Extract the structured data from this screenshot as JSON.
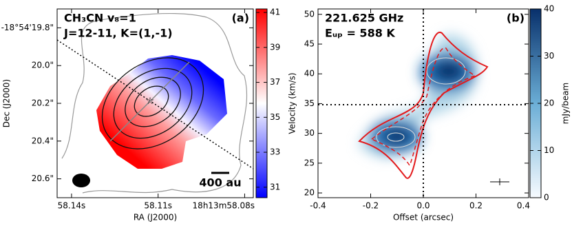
{
  "chart_data": [
    {
      "type": "image",
      "panel_label": "(a)",
      "title_lines": [
        "CH₃CN v₈=1",
        "J=12-11, K=(1,-1)"
      ],
      "scalebar_label": "400 au",
      "x_label": "RA (J2000)",
      "y_label": "Dec (J2000)",
      "xlim": [
        58.145,
        58.077
      ],
      "xticks": [
        {
          "value": 58.14,
          "label": "58.14s"
        },
        {
          "value": 58.11,
          "label": "58.11s"
        },
        {
          "value": 58.08,
          "label": "18h13m58.08s"
        }
      ],
      "ylim": [
        20.7,
        19.7
      ],
      "yticks": [
        {
          "value": 19.8,
          "label": "-18°54'19.8\""
        },
        {
          "value": 20.0,
          "label": "20.0\""
        },
        {
          "value": 20.2,
          "label": "20.2\""
        },
        {
          "value": 20.4,
          "label": "20.4\""
        },
        {
          "value": 20.6,
          "label": "20.6\""
        }
      ],
      "colorbar": {
        "colormap": "bwr",
        "lim": [
          30.4,
          41.2
        ],
        "ticks": [
          31,
          33,
          35,
          37,
          39,
          41
        ]
      }
    },
    {
      "type": "image",
      "panel_label": "(b)",
      "title_lines": [
        "221.625 GHz",
        "Eᵤₚ = 588 K"
      ],
      "x_label": "Offset (arcsec)",
      "y_label": "Velocity (km/s)",
      "xlim": [
        -0.4,
        0.4
      ],
      "xticks": [
        -0.4,
        -0.2,
        {
          "value": 0,
          "label": "0.0"
        },
        0.2,
        0.4
      ],
      "ylim": [
        19.2,
        50.9
      ],
      "yticks": [
        20,
        25,
        30,
        35,
        40,
        45,
        50
      ],
      "colorbar": {
        "colormap": "Blues",
        "label": "mJy/beam",
        "lim": [
          0,
          40
        ],
        "ticks": [
          0,
          10,
          20,
          30,
          40
        ]
      }
    }
  ]
}
